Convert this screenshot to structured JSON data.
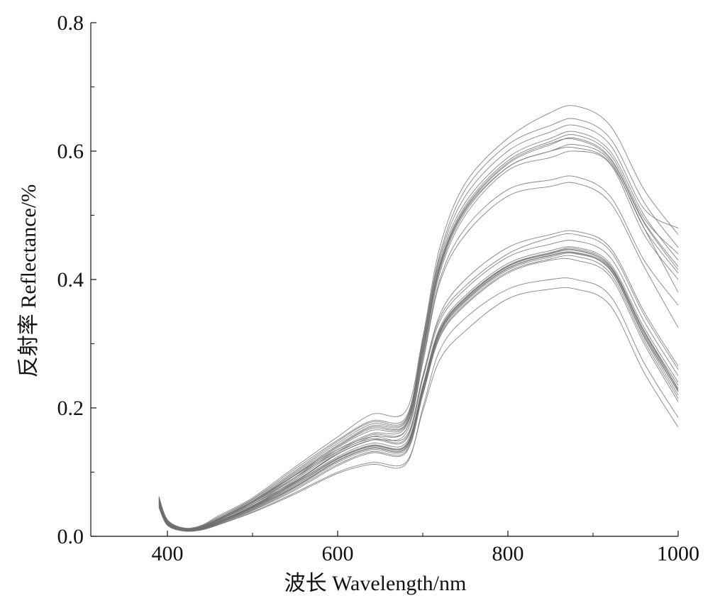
{
  "chart_data": {
    "type": "line",
    "title": "",
    "xlabel": "波长 Wavelength/nm",
    "ylabel": "反射率 Reflectance/%",
    "xlim": [
      310,
      1000
    ],
    "ylim": [
      0,
      0.8
    ],
    "xticks": [
      400,
      600,
      800,
      1000
    ],
    "xtick_labels": [
      "400",
      "600",
      "800",
      "1000"
    ],
    "yticks": [
      0,
      0.2,
      0.4,
      0.6,
      0.8
    ],
    "ytick_labels": [
      "0.0",
      "0.2",
      "0.4",
      "0.6",
      "0.8"
    ],
    "grid": false,
    "legend": "none",
    "line_color": "#6e6e6e",
    "x": [
      390,
      400,
      420,
      440,
      460,
      500,
      550,
      600,
      640,
      680,
      700,
      720,
      750,
      800,
      850,
      880,
      920,
      960,
      1000
    ],
    "series": [
      {
        "values": [
          0.06,
          0.025,
          0.012,
          0.015,
          0.028,
          0.055,
          0.1,
          0.145,
          0.175,
          0.18,
          0.3,
          0.43,
          0.52,
          0.59,
          0.62,
          0.63,
          0.6,
          0.5,
          0.43
        ]
      },
      {
        "values": [
          0.055,
          0.022,
          0.011,
          0.014,
          0.026,
          0.052,
          0.095,
          0.14,
          0.17,
          0.175,
          0.29,
          0.42,
          0.51,
          0.58,
          0.61,
          0.62,
          0.59,
          0.49,
          0.42
        ]
      },
      {
        "values": [
          0.05,
          0.02,
          0.01,
          0.013,
          0.025,
          0.05,
          0.09,
          0.135,
          0.16,
          0.17,
          0.285,
          0.415,
          0.505,
          0.575,
          0.6,
          0.61,
          0.585,
          0.48,
          0.41
        ]
      },
      {
        "values": [
          0.045,
          0.018,
          0.009,
          0.012,
          0.023,
          0.048,
          0.085,
          0.13,
          0.155,
          0.165,
          0.28,
          0.41,
          0.5,
          0.57,
          0.59,
          0.6,
          0.58,
          0.47,
          0.4
        ]
      },
      {
        "values": [
          0.058,
          0.024,
          0.012,
          0.016,
          0.03,
          0.058,
          0.105,
          0.15,
          0.18,
          0.185,
          0.305,
          0.44,
          0.54,
          0.61,
          0.64,
          0.65,
          0.62,
          0.52,
          0.45
        ]
      },
      {
        "values": [
          0.062,
          0.026,
          0.013,
          0.017,
          0.032,
          0.06,
          0.108,
          0.155,
          0.19,
          0.195,
          0.31,
          0.45,
          0.55,
          0.62,
          0.66,
          0.67,
          0.64,
          0.54,
          0.47
        ]
      },
      {
        "values": [
          0.052,
          0.021,
          0.01,
          0.013,
          0.025,
          0.05,
          0.092,
          0.138,
          0.165,
          0.172,
          0.288,
          0.418,
          0.508,
          0.575,
          0.6,
          0.605,
          0.582,
          0.48,
          0.38
        ]
      },
      {
        "values": [
          0.048,
          0.019,
          0.009,
          0.012,
          0.024,
          0.047,
          0.088,
          0.132,
          0.158,
          0.165,
          0.275,
          0.4,
          0.48,
          0.54,
          0.555,
          0.56,
          0.53,
          0.43,
          0.36
        ]
      },
      {
        "values": [
          0.056,
          0.023,
          0.011,
          0.015,
          0.028,
          0.054,
          0.098,
          0.142,
          0.172,
          0.178,
          0.295,
          0.425,
          0.515,
          0.585,
          0.615,
          0.625,
          0.595,
          0.495,
          0.44
        ]
      },
      {
        "values": [
          0.054,
          0.022,
          0.011,
          0.014,
          0.027,
          0.053,
          0.096,
          0.14,
          0.168,
          0.174,
          0.292,
          0.422,
          0.512,
          0.582,
          0.612,
          0.618,
          0.588,
          0.488,
          0.415
        ]
      },
      {
        "values": [
          0.046,
          0.018,
          0.009,
          0.012,
          0.022,
          0.046,
          0.084,
          0.128,
          0.15,
          0.16,
          0.27,
          0.395,
          0.47,
          0.53,
          0.545,
          0.55,
          0.52,
          0.42,
          0.325
        ]
      },
      {
        "values": [
          0.06,
          0.025,
          0.012,
          0.016,
          0.03,
          0.057,
          0.102,
          0.148,
          0.178,
          0.182,
          0.302,
          0.435,
          0.53,
          0.6,
          0.63,
          0.64,
          0.61,
          0.51,
          0.48
        ]
      },
      {
        "values": [
          0.055,
          0.02,
          0.01,
          0.012,
          0.022,
          0.045,
          0.08,
          0.12,
          0.14,
          0.14,
          0.23,
          0.32,
          0.37,
          0.42,
          0.44,
          0.445,
          0.42,
          0.32,
          0.23
        ]
      },
      {
        "values": [
          0.05,
          0.019,
          0.009,
          0.011,
          0.02,
          0.042,
          0.076,
          0.115,
          0.135,
          0.135,
          0.225,
          0.315,
          0.365,
          0.415,
          0.435,
          0.44,
          0.415,
          0.31,
          0.22
        ]
      },
      {
        "values": [
          0.045,
          0.018,
          0.009,
          0.011,
          0.019,
          0.04,
          0.072,
          0.11,
          0.13,
          0.13,
          0.22,
          0.31,
          0.36,
          0.41,
          0.43,
          0.43,
          0.405,
          0.3,
          0.21
        ]
      },
      {
        "values": [
          0.058,
          0.021,
          0.01,
          0.013,
          0.023,
          0.047,
          0.083,
          0.124,
          0.145,
          0.145,
          0.235,
          0.325,
          0.375,
          0.425,
          0.445,
          0.45,
          0.425,
          0.325,
          0.24
        ]
      },
      {
        "values": [
          0.062,
          0.022,
          0.011,
          0.014,
          0.025,
          0.05,
          0.086,
          0.128,
          0.15,
          0.15,
          0.245,
          0.335,
          0.385,
          0.435,
          0.455,
          0.46,
          0.435,
          0.335,
          0.25
        ]
      },
      {
        "values": [
          0.052,
          0.019,
          0.009,
          0.012,
          0.021,
          0.044,
          0.078,
          0.118,
          0.138,
          0.138,
          0.228,
          0.318,
          0.368,
          0.418,
          0.438,
          0.442,
          0.418,
          0.315,
          0.225
        ]
      },
      {
        "values": [
          0.048,
          0.018,
          0.009,
          0.011,
          0.02,
          0.041,
          0.074,
          0.112,
          0.132,
          0.132,
          0.222,
          0.312,
          0.362,
          0.412,
          0.432,
          0.436,
          0.41,
          0.305,
          0.215
        ]
      },
      {
        "values": [
          0.056,
          0.02,
          0.01,
          0.013,
          0.023,
          0.046,
          0.082,
          0.122,
          0.142,
          0.142,
          0.232,
          0.322,
          0.372,
          0.422,
          0.442,
          0.448,
          0.422,
          0.32,
          0.235
        ]
      },
      {
        "values": [
          0.054,
          0.02,
          0.01,
          0.012,
          0.022,
          0.045,
          0.08,
          0.121,
          0.141,
          0.141,
          0.231,
          0.321,
          0.371,
          0.421,
          0.441,
          0.446,
          0.42,
          0.318,
          0.228
        ]
      },
      {
        "values": [
          0.06,
          0.023,
          0.012,
          0.015,
          0.028,
          0.055,
          0.095,
          0.135,
          0.155,
          0.155,
          0.25,
          0.34,
          0.39,
          0.44,
          0.465,
          0.47,
          0.445,
          0.345,
          0.26
        ]
      },
      {
        "values": [
          0.05,
          0.018,
          0.009,
          0.01,
          0.018,
          0.038,
          0.068,
          0.1,
          0.115,
          0.115,
          0.195,
          0.275,
          0.32,
          0.37,
          0.385,
          0.385,
          0.36,
          0.255,
          0.17
        ]
      },
      {
        "values": [
          0.046,
          0.017,
          0.008,
          0.01,
          0.018,
          0.037,
          0.066,
          0.098,
          0.112,
          0.112,
          0.2,
          0.29,
          0.34,
          0.385,
          0.4,
          0.4,
          0.375,
          0.27,
          0.185
        ]
      },
      {
        "values": [
          0.058,
          0.022,
          0.011,
          0.014,
          0.026,
          0.052,
          0.092,
          0.132,
          0.152,
          0.152,
          0.248,
          0.345,
          0.4,
          0.45,
          0.47,
          0.475,
          0.45,
          0.35,
          0.265
        ]
      },
      {
        "values": [
          0.052,
          0.019,
          0.009,
          0.012,
          0.021,
          0.043,
          0.077,
          0.117,
          0.137,
          0.137,
          0.227,
          0.317,
          0.367,
          0.417,
          0.437,
          0.441,
          0.416,
          0.312,
          0.226
        ]
      }
    ]
  }
}
